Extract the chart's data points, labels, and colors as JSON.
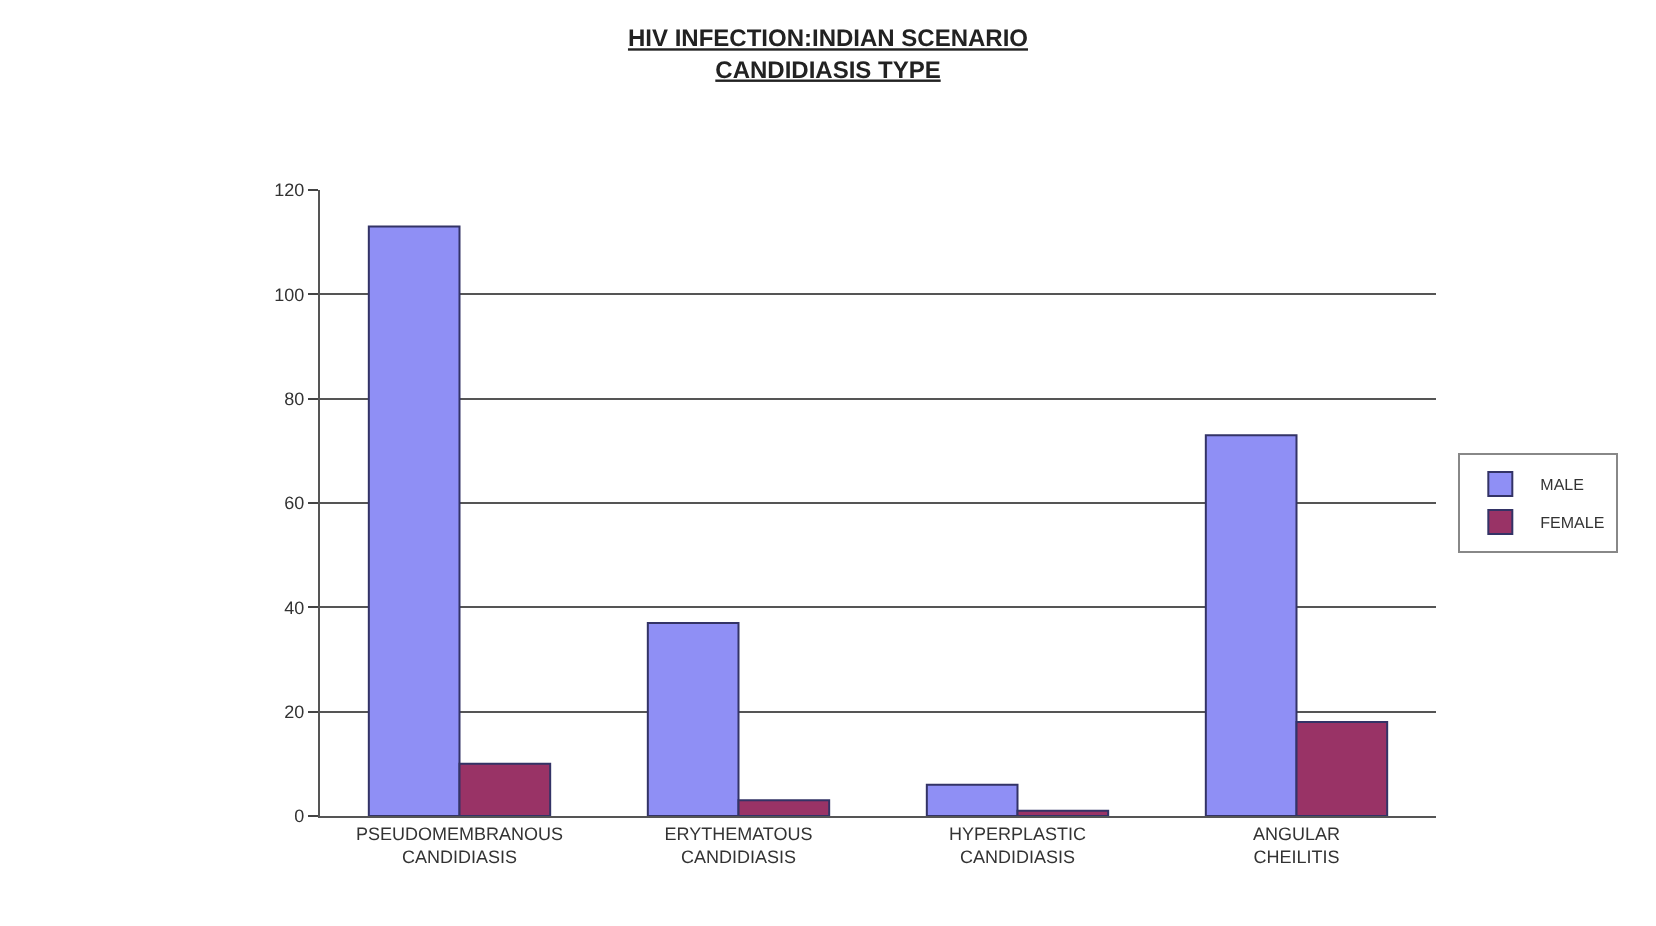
{
  "chart_data": {
    "type": "bar",
    "title": "HIV INFECTION:INDIAN SCENARIO",
    "subtitle": "CANDIDIASIS TYPE",
    "categories": [
      "PSEUDOMEMBRANOUS CANDIDIASIS",
      "ERYTHEMATOUS CANDIDIASIS",
      "HYPERPLASTIC CANDIDIASIS",
      "ANGULAR CHEILITIS"
    ],
    "series": [
      {
        "name": "MALE",
        "color": "#8f8ff5",
        "values": [
          113,
          37,
          6,
          73
        ]
      },
      {
        "name": "FEMALE",
        "color": "#993366",
        "values": [
          10,
          3,
          1,
          18
        ]
      }
    ],
    "ylim": [
      0,
      120
    ],
    "yticks": [
      0,
      20,
      40,
      60,
      80,
      100,
      120
    ],
    "grid": "y",
    "legend": "right"
  }
}
